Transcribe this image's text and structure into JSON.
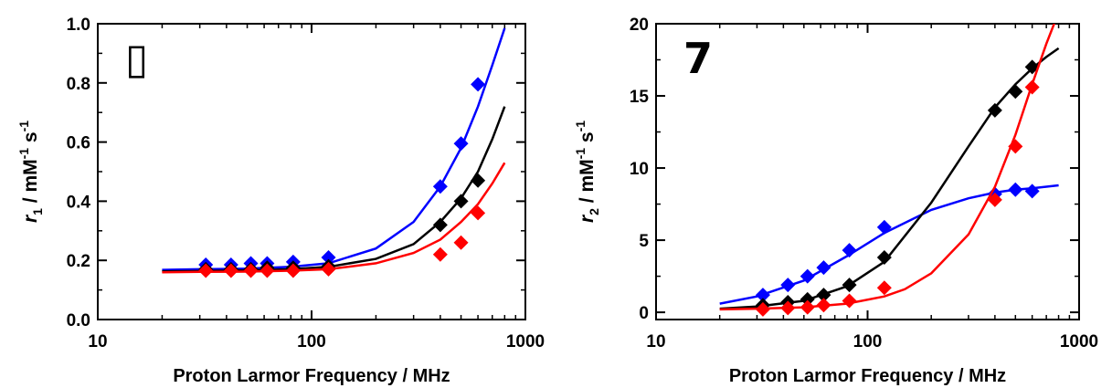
{
  "chart_data": [
    {
      "type": "scatter",
      "panel_label": "▯",
      "xlabel": "Proton Larmor Frequency / MHz",
      "ylabel": {
        "symbol": "r",
        "sub": "1",
        "text": " / mM",
        "sup1": "-1",
        "mid": " s",
        "sup2": "-1"
      },
      "xscale": "log",
      "xlim": [
        10,
        1000
      ],
      "ylim": [
        0.0,
        1.0
      ],
      "xticks": [
        10,
        100,
        1000
      ],
      "xtick_labels": [
        "10",
        "100",
        "1000"
      ],
      "yticks": [
        0.0,
        0.2,
        0.4,
        0.6,
        0.8,
        1.0
      ],
      "ytick_labels": [
        "0.0",
        "0.2",
        "0.4",
        "0.6",
        "0.8",
        "1.0"
      ],
      "series": [
        {
          "color": "#0000ff",
          "x": [
            32,
            42,
            52,
            62,
            82,
            120,
            400,
            500,
            600
          ],
          "y": [
            0.185,
            0.185,
            0.19,
            0.19,
            0.195,
            0.21,
            0.45,
            0.595,
            0.795
          ],
          "fit_x": [
            20,
            30,
            50,
            80,
            120,
            200,
            300,
            400,
            500,
            600,
            700,
            800
          ],
          "fit_y": [
            0.168,
            0.17,
            0.172,
            0.178,
            0.19,
            0.24,
            0.33,
            0.45,
            0.58,
            0.72,
            0.86,
            0.985
          ]
        },
        {
          "color": "#000000",
          "x": [
            32,
            42,
            52,
            62,
            82,
            120,
            400,
            500,
            600
          ],
          "y": [
            0.17,
            0.17,
            0.17,
            0.175,
            0.175,
            0.18,
            0.32,
            0.4,
            0.47
          ],
          "fit_x": [
            20,
            30,
            50,
            80,
            120,
            200,
            300,
            400,
            500,
            600,
            700,
            800
          ],
          "fit_y": [
            0.163,
            0.164,
            0.166,
            0.17,
            0.178,
            0.205,
            0.255,
            0.33,
            0.41,
            0.5,
            0.61,
            0.72
          ]
        },
        {
          "color": "#ff0000",
          "x": [
            32,
            42,
            52,
            62,
            82,
            120,
            400,
            500,
            600
          ],
          "y": [
            0.165,
            0.165,
            0.165,
            0.165,
            0.165,
            0.17,
            0.22,
            0.26,
            0.36
          ],
          "fit_x": [
            20,
            30,
            50,
            80,
            120,
            200,
            300,
            400,
            500,
            600,
            700,
            800
          ],
          "fit_y": [
            0.16,
            0.161,
            0.162,
            0.165,
            0.17,
            0.19,
            0.225,
            0.27,
            0.33,
            0.39,
            0.46,
            0.53
          ]
        }
      ]
    },
    {
      "type": "scatter",
      "panel_label": "7",
      "xlabel": "Proton Larmor Frequency / MHz",
      "ylabel": {
        "symbol": "r",
        "sub": "2",
        "text": " / mM",
        "sup1": "-1",
        "mid": " s",
        "sup2": "-1"
      },
      "xscale": "log",
      "xlim": [
        10,
        1000
      ],
      "ylim": [
        -0.5,
        20
      ],
      "xticks": [
        10,
        100,
        1000
      ],
      "xtick_labels": [
        "10",
        "100",
        "1000"
      ],
      "yticks": [
        0,
        5,
        10,
        15,
        20
      ],
      "ytick_labels": [
        "0",
        "5",
        "10",
        "15",
        "20"
      ],
      "series": [
        {
          "color": "#0000ff",
          "x": [
            32,
            42,
            52,
            62,
            82,
            120,
            400,
            500,
            600
          ],
          "y": [
            1.2,
            1.9,
            2.5,
            3.1,
            4.3,
            5.9,
            8.2,
            8.5,
            8.4
          ],
          "fit_x": [
            20,
            30,
            50,
            80,
            120,
            200,
            300,
            400,
            500,
            600,
            800
          ],
          "fit_y": [
            0.6,
            1.1,
            2.2,
            3.9,
            5.5,
            7.1,
            7.9,
            8.3,
            8.5,
            8.6,
            8.8
          ]
        },
        {
          "color": "#000000",
          "x": [
            32,
            42,
            52,
            62,
            82,
            120,
            400,
            500,
            600
          ],
          "y": [
            0.5,
            0.7,
            0.9,
            1.2,
            1.9,
            3.8,
            14.0,
            15.3,
            17.0
          ],
          "fit_x": [
            20,
            30,
            50,
            80,
            120,
            200,
            300,
            400,
            500,
            600,
            700,
            800
          ],
          "fit_y": [
            0.25,
            0.4,
            0.8,
            1.8,
            3.5,
            7.6,
            11.5,
            14.2,
            15.8,
            16.9,
            17.7,
            18.3
          ]
        },
        {
          "color": "#ff0000",
          "x": [
            32,
            42,
            52,
            62,
            82,
            120,
            400,
            500,
            600
          ],
          "y": [
            0.2,
            0.3,
            0.35,
            0.5,
            0.8,
            1.7,
            7.8,
            11.5,
            15.6
          ],
          "fit_x": [
            20,
            30,
            50,
            80,
            120,
            150,
            200,
            300,
            400,
            500,
            600,
            700,
            800
          ],
          "fit_y": [
            0.2,
            0.25,
            0.35,
            0.6,
            1.1,
            1.6,
            2.7,
            5.4,
            8.7,
            12.3,
            15.8,
            18.6,
            20.8
          ]
        }
      ]
    }
  ]
}
